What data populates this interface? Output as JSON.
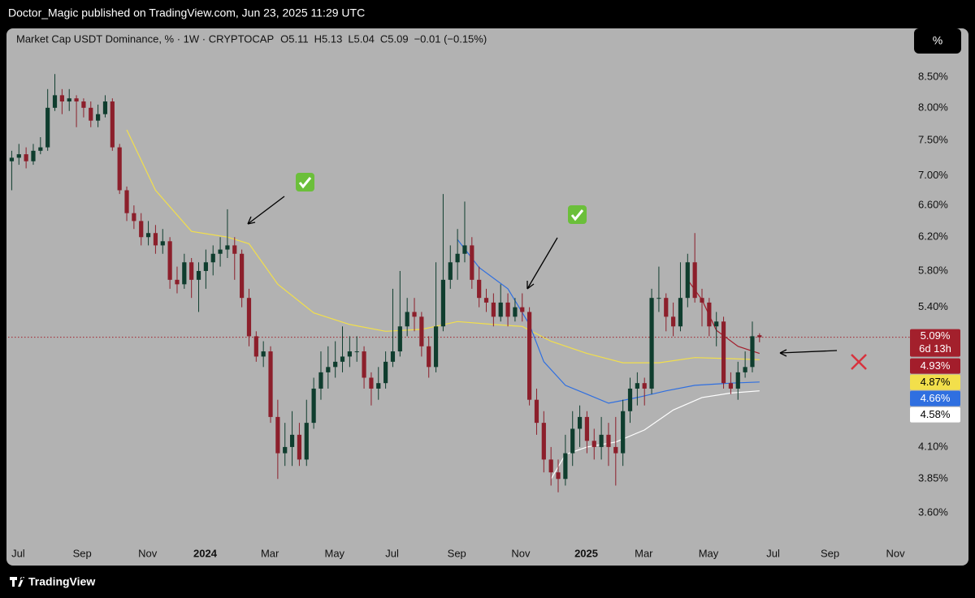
{
  "chart_data": {
    "type": "candlestick",
    "attribution": "Doctor_Magic published on TradingView.com, Jun 23, 2025 11:29 UTC",
    "title": "Market Cap USDT Dominance, % · 1W · CRYPTOCAP",
    "ohlc_text": [
      "O5.11",
      "H5.13",
      "L5.04",
      "C5.09",
      "−0.01 (−0.15%)"
    ],
    "unit_button": "%",
    "brand": "TradingView",
    "yscale": "log",
    "ylim": [
      3.4,
      9.28
    ],
    "yticks": [
      {
        "value": 8.5,
        "label": "8.50%"
      },
      {
        "value": 8.0,
        "label": "8.00%"
      },
      {
        "value": 7.5,
        "label": "7.50%"
      },
      {
        "value": 7.0,
        "label": "7.00%"
      },
      {
        "value": 6.6,
        "label": "6.60%"
      },
      {
        "value": 6.2,
        "label": "6.20%"
      },
      {
        "value": 5.8,
        "label": "5.80%"
      },
      {
        "value": 5.4,
        "label": "5.40%"
      },
      {
        "value": 4.1,
        "label": "4.10%"
      },
      {
        "value": 3.85,
        "label": "3.85%"
      },
      {
        "value": 3.6,
        "label": "3.60%"
      }
    ],
    "xlim": [
      -0.5,
      124.7
    ],
    "xticks": [
      {
        "value": 0.9,
        "label": "Jul"
      },
      {
        "value": 9.8,
        "label": "Sep"
      },
      {
        "value": 18.9,
        "label": "Nov"
      },
      {
        "value": 26.9,
        "label": "2024"
      },
      {
        "value": 35.9,
        "label": "Mar"
      },
      {
        "value": 44.9,
        "label": "May"
      },
      {
        "value": 52.9,
        "label": "Jul"
      },
      {
        "value": 61.9,
        "label": "Sep"
      },
      {
        "value": 70.8,
        "label": "Nov"
      },
      {
        "value": 79.9,
        "label": "2025"
      },
      {
        "value": 87.9,
        "label": "Mar"
      },
      {
        "value": 96.9,
        "label": "May"
      },
      {
        "value": 105.9,
        "label": "Jul"
      },
      {
        "value": 113.8,
        "label": "Sep"
      },
      {
        "value": 122.9,
        "label": "Nov"
      }
    ],
    "up_color": "#0f3d2e",
    "down_color": "#8c1f2b",
    "open": [
      7.2,
      7.25,
      7.3,
      7.2,
      7.35,
      7.4,
      8.0,
      8.2,
      8.1,
      8.15,
      8.1,
      8.0,
      7.8,
      7.9,
      8.1,
      7.4,
      6.8,
      6.5,
      6.4,
      6.2,
      6.25,
      6.1,
      6.15,
      5.7,
      5.65,
      5.9,
      5.7,
      5.8,
      5.9,
      6.0,
      6.05,
      6.1,
      6.0,
      5.5,
      5.1,
      4.9,
      4.95,
      4.35,
      4.05,
      4.1,
      4.2,
      4.0,
      4.3,
      4.6,
      4.75,
      4.8,
      4.85,
      4.9,
      4.95,
      4.95,
      4.7,
      4.6,
      4.65,
      4.85,
      4.95,
      5.2,
      5.35,
      5.3,
      5.0,
      4.8,
      5.2,
      5.7,
      5.9,
      6.0,
      6.1,
      5.7,
      5.5,
      5.45,
      5.3,
      5.45,
      5.3,
      5.4,
      5.35,
      4.5,
      4.3,
      4.0,
      3.9,
      3.85,
      4.05,
      4.25,
      4.35,
      4.15,
      4.1,
      4.2,
      4.1,
      4.05,
      4.4,
      4.6,
      4.65,
      4.6,
      5.5,
      5.5,
      5.3,
      5.2,
      5.5,
      5.9,
      5.5,
      5.45,
      5.2,
      5.25,
      4.65,
      4.6,
      4.75,
      4.8,
      5.11
    ],
    "high": [
      7.35,
      7.45,
      7.4,
      7.45,
      7.55,
      8.3,
      8.55,
      8.3,
      8.3,
      8.2,
      8.15,
      8.1,
      8.05,
      8.2,
      8.15,
      7.45,
      6.85,
      6.6,
      6.5,
      6.4,
      6.35,
      6.3,
      6.2,
      5.85,
      6.0,
      5.95,
      5.9,
      6.05,
      6.1,
      6.2,
      6.55,
      6.2,
      6.05,
      5.6,
      5.15,
      5.05,
      5.0,
      4.5,
      4.3,
      4.4,
      4.3,
      4.5,
      4.7,
      4.95,
      5.0,
      5.05,
      5.2,
      5.1,
      5.1,
      5.0,
      4.75,
      4.8,
      4.95,
      5.6,
      5.8,
      5.5,
      5.5,
      5.35,
      5.1,
      5.9,
      6.75,
      6.1,
      6.3,
      6.65,
      6.2,
      5.85,
      5.6,
      5.55,
      5.65,
      5.55,
      5.5,
      5.55,
      5.4,
      4.6,
      4.4,
      4.1,
      4.0,
      4.2,
      4.4,
      4.45,
      4.4,
      4.25,
      4.35,
      4.3,
      4.35,
      4.5,
      4.7,
      4.75,
      4.7,
      5.6,
      5.85,
      5.55,
      5.45,
      5.9,
      6.0,
      6.25,
      5.6,
      5.5,
      5.35,
      5.3,
      4.75,
      4.85,
      4.95,
      5.25,
      5.13
    ],
    "low": [
      6.8,
      7.15,
      7.1,
      7.15,
      7.3,
      7.35,
      7.95,
      7.9,
      7.95,
      7.7,
      7.85,
      7.7,
      7.7,
      7.85,
      7.35,
      6.75,
      6.4,
      6.3,
      6.1,
      6.1,
      6.0,
      6.0,
      5.6,
      5.55,
      5.6,
      5.5,
      5.35,
      5.6,
      5.75,
      5.85,
      5.95,
      5.7,
      5.4,
      5.0,
      4.85,
      4.8,
      4.3,
      3.85,
      3.95,
      3.95,
      3.95,
      3.95,
      4.25,
      4.5,
      4.6,
      4.7,
      4.75,
      4.8,
      4.85,
      4.6,
      4.45,
      4.5,
      4.6,
      4.8,
      4.9,
      5.1,
      5.15,
      4.9,
      4.7,
      4.75,
      5.15,
      5.6,
      5.7,
      5.9,
      5.6,
      5.4,
      5.35,
      5.2,
      5.25,
      5.2,
      5.25,
      5.25,
      4.45,
      4.2,
      3.9,
      3.8,
      3.75,
      3.8,
      3.95,
      4.1,
      4.05,
      4.0,
      4.0,
      3.95,
      3.8,
      3.95,
      4.3,
      4.45,
      4.45,
      4.55,
      5.35,
      5.15,
      5.1,
      5.15,
      5.4,
      5.45,
      5.2,
      5.1,
      5.0,
      4.6,
      4.55,
      4.5,
      4.7,
      4.75,
      5.04
    ],
    "close": [
      7.25,
      7.3,
      7.2,
      7.35,
      7.4,
      8.0,
      8.2,
      8.1,
      8.15,
      8.1,
      8.0,
      7.8,
      7.9,
      8.1,
      7.4,
      6.8,
      6.5,
      6.4,
      6.2,
      6.25,
      6.1,
      6.15,
      5.7,
      5.65,
      5.9,
      5.7,
      5.8,
      5.9,
      6.0,
      6.05,
      6.1,
      6.0,
      5.5,
      5.1,
      4.9,
      4.95,
      4.35,
      4.05,
      4.1,
      4.2,
      4.0,
      4.3,
      4.6,
      4.75,
      4.8,
      4.85,
      4.9,
      4.95,
      4.95,
      4.7,
      4.6,
      4.65,
      4.85,
      4.95,
      5.2,
      5.35,
      5.3,
      5.0,
      4.8,
      5.2,
      5.7,
      5.9,
      6.0,
      6.1,
      5.7,
      5.5,
      5.45,
      5.3,
      5.45,
      5.3,
      5.4,
      5.35,
      4.5,
      4.3,
      4.0,
      3.9,
      3.85,
      4.05,
      4.25,
      4.35,
      4.15,
      4.1,
      4.2,
      4.1,
      4.05,
      4.4,
      4.6,
      4.65,
      4.6,
      5.5,
      5.5,
      5.3,
      5.2,
      5.5,
      5.9,
      5.5,
      5.45,
      5.2,
      5.25,
      4.65,
      4.6,
      4.75,
      4.8,
      5.1,
      5.09
    ],
    "last_price": 5.09,
    "last_label": "5.09%",
    "countdown": "6d 13h",
    "price_line_color": "#a3202c",
    "series": [
      {
        "color": "#f2df4b",
        "x": [
          16,
          20,
          25,
          30,
          33,
          37,
          42,
          47,
          52,
          57,
          62,
          67,
          71,
          75,
          80,
          85,
          90,
          95,
          100,
          104
        ],
        "values": [
          7.66,
          6.8,
          6.27,
          6.2,
          6.12,
          5.65,
          5.34,
          5.22,
          5.15,
          5.17,
          5.25,
          5.22,
          5.2,
          5.05,
          4.93,
          4.84,
          4.84,
          4.89,
          4.88,
          4.87
        ],
        "last_label": "4.87%"
      },
      {
        "color": "#2f6fe0",
        "x": [
          62,
          65,
          69,
          72,
          74,
          77,
          80,
          83,
          87,
          91,
          95,
          100,
          104
        ],
        "values": [
          6.17,
          5.84,
          5.6,
          5.22,
          4.85,
          4.63,
          4.55,
          4.47,
          4.52,
          4.58,
          4.63,
          4.65,
          4.66
        ],
        "last_label": "4.66%"
      },
      {
        "color": "#ffffff",
        "x": [
          75,
          77,
          80,
          84,
          88,
          92,
          96,
          100,
          104
        ],
        "values": [
          3.85,
          4.04,
          4.1,
          4.14,
          4.24,
          4.41,
          4.52,
          4.56,
          4.58
        ],
        "last_label": "4.58%"
      },
      {
        "color": "#a31d2b",
        "x": [
          94,
          96,
          98,
          101,
          104
        ],
        "values": [
          5.7,
          5.48,
          5.16,
          5.0,
          4.93
        ],
        "last_label": "4.93%"
      }
    ]
  }
}
